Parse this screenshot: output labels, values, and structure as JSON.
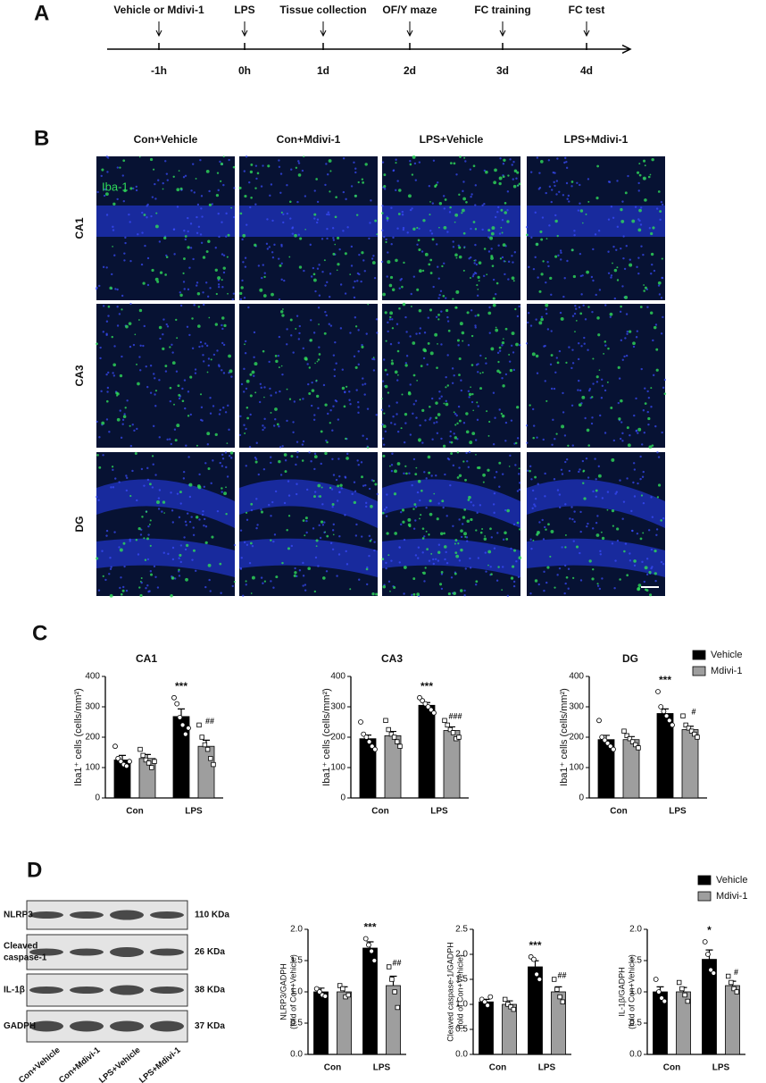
{
  "panel_a": {
    "label": "A",
    "events": [
      {
        "label": "Vehicle or Mdivi-1",
        "time": "-1h"
      },
      {
        "label": "LPS",
        "time": "0h"
      },
      {
        "label": "Tissue collection",
        "time": "1d"
      },
      {
        "label": "OF/Y maze",
        "time": "2d"
      },
      {
        "label": "FC training",
        "time": "3d"
      },
      {
        "label": "FC test",
        "time": "4d"
      }
    ]
  },
  "panel_b": {
    "label": "B",
    "columns": [
      "Con+Vehicle",
      "Con+Mdivi-1",
      "LPS+Vehicle",
      "LPS+Mdivi-1"
    ],
    "rows": [
      "CA1",
      "CA3",
      "DG"
    ],
    "stain": "Iba-1"
  },
  "panel_c": {
    "label": "C"
  },
  "panel_d": {
    "label": "D",
    "proteins": [
      {
        "label": [
          "NLRP3"
        ],
        "size": "110 KDa"
      },
      {
        "label": [
          "Cleaved",
          "caspase-1"
        ],
        "size": "26 KDa"
      },
      {
        "label": [
          "IL-1β"
        ],
        "size": "38 KDa"
      },
      {
        "label": [
          "GADPH"
        ],
        "size": "37 KDa"
      }
    ],
    "lanes": [
      "Con+Vehicle",
      "Con+Mdivi-1",
      "LPS+Vehicle",
      "LPS+Mdivi-1"
    ]
  },
  "chart_data": [
    {
      "type": "bar",
      "title": "CA1",
      "y_label": [
        "Iba1⁺ cells (cells/mm²)"
      ],
      "categories": [
        "Con",
        "LPS"
      ],
      "ylim": [
        0,
        400
      ],
      "yticks": [
        0,
        100,
        200,
        300,
        400
      ],
      "series": [
        {
          "name": "Vehicle",
          "color": "#000000",
          "marker": "circle",
          "values": [
            125,
            268
          ],
          "errors": [
            15,
            25
          ],
          "points": [
            [
              170,
              130,
              120,
              110,
              105,
              120
            ],
            [
              330,
              310,
              265,
              240,
              210,
              230
            ]
          ],
          "sig_labels": [
            null,
            "***"
          ]
        },
        {
          "name": "Mdivi-1",
          "color": "#9e9e9e",
          "marker": "square",
          "values": [
            130,
            170
          ],
          "errors": [
            13,
            20
          ],
          "points": [
            [
              160,
              140,
              125,
              115,
              100,
              120
            ],
            [
              240,
              200,
              175,
              160,
              130,
              110
            ]
          ],
          "sig_labels": [
            null,
            "##"
          ]
        }
      ]
    },
    {
      "type": "bar",
      "title": "CA3",
      "y_label": [
        "Iba1⁺ cells (cells/mm²)"
      ],
      "categories": [
        "Con",
        "LPS"
      ],
      "ylim": [
        0,
        400
      ],
      "yticks": [
        0,
        100,
        200,
        300,
        400
      ],
      "series": [
        {
          "name": "Vehicle",
          "color": "#000000",
          "marker": "circle",
          "values": [
            195,
            305
          ],
          "errors": [
            12,
            9
          ],
          "points": [
            [
              250,
              210,
              200,
              185,
              170,
              160
            ],
            [
              330,
              320,
              310,
              300,
              290,
              280
            ]
          ],
          "sig_labels": [
            null,
            "***"
          ]
        },
        {
          "name": "Mdivi-1",
          "color": "#9e9e9e",
          "marker": "square",
          "values": [
            205,
            222
          ],
          "errors": [
            14,
            12
          ],
          "points": [
            [
              255,
              225,
              210,
              200,
              185,
              170
            ],
            [
              255,
              240,
              225,
              215,
              195,
              200
            ]
          ],
          "sig_labels": [
            null,
            "###"
          ]
        }
      ]
    },
    {
      "type": "bar",
      "title": "DG",
      "y_label": [
        "Iba1⁺ cells (cells/mm²)"
      ],
      "categories": [
        "Con",
        "LPS"
      ],
      "ylim": [
        0,
        400
      ],
      "yticks": [
        0,
        100,
        200,
        300,
        400
      ],
      "legend": true,
      "series": [
        {
          "name": "Vehicle",
          "color": "#000000",
          "marker": "circle",
          "values": [
            192,
            278
          ],
          "errors": [
            14,
            15
          ],
          "points": [
            [
              255,
              200,
              190,
              180,
              170,
              160
            ],
            [
              350,
              300,
              285,
              270,
              255,
              240
            ]
          ],
          "sig_labels": [
            null,
            "***"
          ]
        },
        {
          "name": "Mdivi-1",
          "color": "#9e9e9e",
          "marker": "square",
          "values": [
            192,
            225
          ],
          "errors": [
            10,
            11
          ],
          "points": [
            [
              220,
              205,
              195,
              185,
              175,
              165
            ],
            [
              270,
              240,
              230,
              220,
              210,
              200
            ]
          ],
          "sig_labels": [
            null,
            "#"
          ]
        }
      ]
    },
    {
      "type": "bar",
      "y_label": [
        "NLRP3/GADPH",
        "(fold of Con+Vehicle)"
      ],
      "categories": [
        "Con",
        "LPS"
      ],
      "ylim": [
        0,
        2
      ],
      "yticks": [
        {
          "value": 0,
          "label": "0.0"
        },
        0.5,
        {
          "value": 1,
          "label": "1.0"
        },
        1.5,
        {
          "value": 2,
          "label": "2.0"
        }
      ],
      "series": [
        {
          "name": "Vehicle",
          "color": "#000000",
          "marker": "circle",
          "values": [
            1.0,
            1.7
          ],
          "errors": [
            0.06,
            0.1
          ],
          "points": [
            [
              1.05,
              1.0,
              0.95,
              0.93
            ],
            [
              1.85,
              1.75,
              1.65,
              1.5
            ]
          ],
          "sig_labels": [
            null,
            "***"
          ]
        },
        {
          "name": "Mdivi-1",
          "color": "#9e9e9e",
          "marker": "square",
          "values": [
            1.0,
            1.1
          ],
          "errors": [
            0.08,
            0.15
          ],
          "points": [
            [
              1.1,
              1.05,
              0.92,
              0.95
            ],
            [
              1.4,
              1.2,
              1.0,
              0.75
            ]
          ],
          "sig_labels": [
            null,
            "##"
          ]
        }
      ]
    },
    {
      "type": "bar",
      "y_label": [
        "Cleaved caspase-1/GADPH",
        "(fold of Con+Vehicle)"
      ],
      "categories": [
        "Con",
        "LPS"
      ],
      "ylim": [
        0,
        2.5
      ],
      "yticks": [
        {
          "value": 0,
          "label": "0.0"
        },
        0.5,
        {
          "value": 1,
          "label": "1.0"
        },
        1.5,
        {
          "value": 2,
          "label": "2.0"
        },
        2.5
      ],
      "series": [
        {
          "name": "Vehicle",
          "color": "#000000",
          "marker": "circle",
          "values": [
            1.05,
            1.75
          ],
          "errors": [
            0.05,
            0.12
          ],
          "points": [
            [
              1.1,
              1.05,
              0.98,
              1.15
            ],
            [
              1.95,
              1.9,
              1.6,
              1.5
            ]
          ],
          "sig_labels": [
            null,
            "***"
          ]
        },
        {
          "name": "Mdivi-1",
          "color": "#9e9e9e",
          "marker": "square",
          "values": [
            1.0,
            1.25
          ],
          "errors": [
            0.07,
            0.1
          ],
          "points": [
            [
              1.1,
              1.0,
              0.95,
              0.9
            ],
            [
              1.5,
              1.3,
              1.15,
              1.05
            ]
          ],
          "sig_labels": [
            null,
            "##"
          ]
        }
      ]
    },
    {
      "type": "bar",
      "y_label": [
        "IL-1β/GADPH",
        "(fold of Con+Vehicle)"
      ],
      "categories": [
        "Con",
        "LPS"
      ],
      "ylim": [
        0,
        2
      ],
      "yticks": [
        {
          "value": 0,
          "label": "0.0"
        },
        0.5,
        {
          "value": 1,
          "label": "1.0"
        },
        1.5,
        {
          "value": 2,
          "label": "2.0"
        }
      ],
      "legend": true,
      "series": [
        {
          "name": "Vehicle",
          "color": "#000000",
          "marker": "circle",
          "values": [
            1.0,
            1.52
          ],
          "errors": [
            0.08,
            0.15
          ],
          "points": [
            [
              1.2,
              1.0,
              0.9,
              0.85
            ],
            [
              1.8,
              1.6,
              1.35,
              1.3
            ]
          ],
          "sig_labels": [
            null,
            "*"
          ]
        },
        {
          "name": "Mdivi-1",
          "color": "#9e9e9e",
          "marker": "square",
          "values": [
            1.0,
            1.1
          ],
          "errors": [
            0.07,
            0.07
          ],
          "points": [
            [
              1.15,
              1.05,
              0.95,
              0.85
            ],
            [
              1.25,
              1.15,
              1.05,
              1.0
            ]
          ],
          "sig_labels": [
            null,
            "#"
          ]
        }
      ]
    }
  ]
}
